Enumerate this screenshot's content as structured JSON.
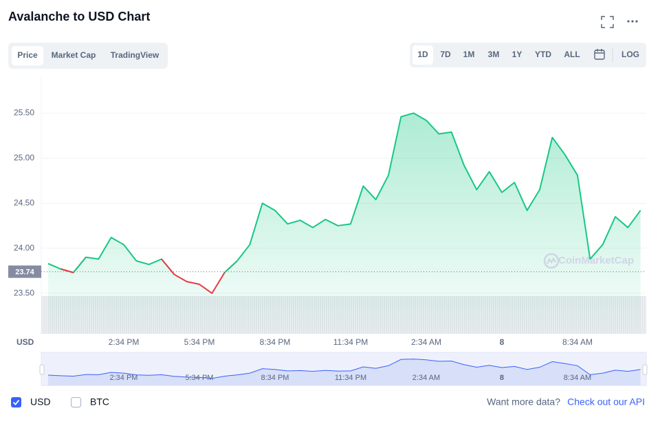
{
  "ui": {
    "title": "Avalanche to USD Chart",
    "tabs": [
      "Price",
      "Market Cap",
      "TradingView"
    ],
    "ranges": [
      "1D",
      "7D",
      "1M",
      "3M",
      "1Y",
      "YTD",
      "ALL"
    ],
    "log": "LOG",
    "currencies": [
      "USD",
      "BTC"
    ],
    "more": "Want more data?",
    "api": "Check out our API",
    "watermark": "CoinMarketCap"
  },
  "chart_data": {
    "type": "line",
    "y_axis_label": "USD",
    "categories": [
      null,
      null,
      null,
      null,
      null,
      null,
      "2:34 PM",
      null,
      null,
      null,
      null,
      null,
      "5:34 PM",
      null,
      null,
      null,
      null,
      null,
      "8:34 PM",
      null,
      null,
      null,
      null,
      null,
      "11:34 PM",
      null,
      null,
      null,
      null,
      null,
      "2:34 AM",
      null,
      null,
      null,
      null,
      null,
      "8",
      null,
      null,
      null,
      null,
      null,
      "8:34 AM",
      null,
      null,
      null,
      null,
      null
    ],
    "series": [
      {
        "name": "USD",
        "values": [
          23.83,
          23.77,
          23.73,
          23.9,
          23.88,
          24.12,
          24.04,
          23.86,
          23.82,
          23.88,
          23.71,
          23.63,
          23.6,
          23.5,
          23.73,
          23.86,
          24.04,
          24.5,
          24.42,
          24.27,
          24.31,
          24.23,
          24.32,
          24.25,
          24.27,
          24.69,
          24.54,
          24.81,
          25.46,
          25.5,
          25.42,
          25.27,
          25.29,
          24.92,
          24.65,
          24.85,
          24.62,
          24.73,
          24.42,
          24.65,
          25.23,
          25.04,
          24.81,
          23.88,
          24.04,
          24.35,
          24.23,
          24.42
        ]
      }
    ],
    "baseline": 23.74,
    "up_color": "#16c784",
    "down_color": "#ea3943",
    "ylim": [
      23.05,
      25.9
    ],
    "yticks": [
      {
        "value": 23.5,
        "label": "23.50"
      },
      {
        "value": 24,
        "label": "24.00"
      },
      {
        "value": 24.5,
        "label": "24.50"
      },
      {
        "value": 25,
        "label": "25.00"
      },
      {
        "value": 25.5,
        "label": "25.50"
      }
    ],
    "grid": true
  }
}
